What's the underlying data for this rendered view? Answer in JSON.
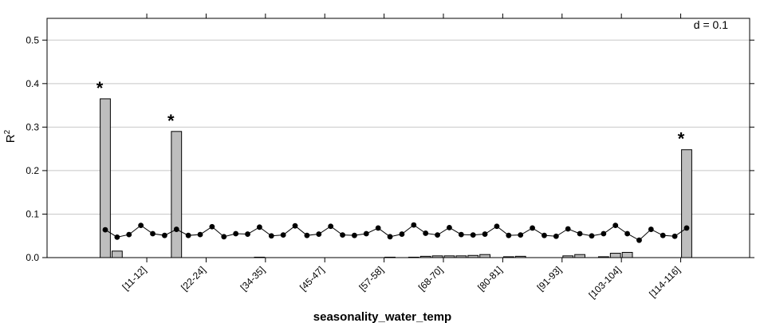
{
  "chart_data": {
    "type": "bar",
    "xlabel": "seasonality_water_temp",
    "ylabel": "R",
    "ylabel_superscript": "2",
    "annotation": "d = 0.1",
    "ylim": [
      0,
      0.55
    ],
    "yticks": [
      0.0,
      0.1,
      0.2,
      0.3,
      0.4,
      0.5
    ],
    "ytick_labels": [
      "0.0",
      "0.1",
      "0.2",
      "0.3",
      "0.4",
      "0.5"
    ],
    "n_categories": 50,
    "xtick_labels": [
      "[11-12]",
      "[22-24]",
      "[34-35]",
      "[45-47]",
      "[57-58]",
      "[68-70]",
      "[80-81]",
      "[91-93]",
      "[103-104]",
      "[114-116]"
    ],
    "xtick_indices": [
      4,
      9,
      14,
      19,
      24,
      29,
      34,
      39,
      44,
      49
    ],
    "significance_marker": "*",
    "significant_indices": [
      0,
      6,
      49
    ],
    "bar_color": "#bebebe",
    "line_color": "#000000",
    "grid": true,
    "series": [
      {
        "values": [
          0.365,
          0.015,
          0.0,
          0.0,
          0.0,
          0.0,
          0.29,
          0.0,
          0.0,
          0.0,
          0.0,
          0.0,
          0.0,
          0.001,
          0.0,
          0.0,
          0.0,
          0.0,
          0.0,
          0.0,
          0.0,
          0.0,
          0.0,
          0.0,
          0.001,
          0.0,
          0.001,
          0.003,
          0.004,
          0.004,
          0.004,
          0.005,
          0.007,
          0.0,
          0.002,
          0.003,
          0.0,
          0.0,
          0.0,
          0.004,
          0.007,
          0.0,
          0.002,
          0.01,
          0.012,
          0.0,
          0.0,
          0.0,
          0.0,
          0.248
        ]
      },
      {
        "values": [
          0.064,
          0.047,
          0.053,
          0.074,
          0.055,
          0.051,
          0.065,
          0.051,
          0.053,
          0.071,
          0.048,
          0.055,
          0.054,
          0.07,
          0.05,
          0.052,
          0.073,
          0.051,
          0.054,
          0.072,
          0.052,
          0.051,
          0.055,
          0.068,
          0.048,
          0.054,
          0.075,
          0.056,
          0.052,
          0.069,
          0.053,
          0.052,
          0.054,
          0.072,
          0.051,
          0.052,
          0.068,
          0.051,
          0.049,
          0.066,
          0.055,
          0.05,
          0.055,
          0.074,
          0.055,
          0.04,
          0.065,
          0.051,
          0.049,
          0.068
        ]
      }
    ]
  }
}
